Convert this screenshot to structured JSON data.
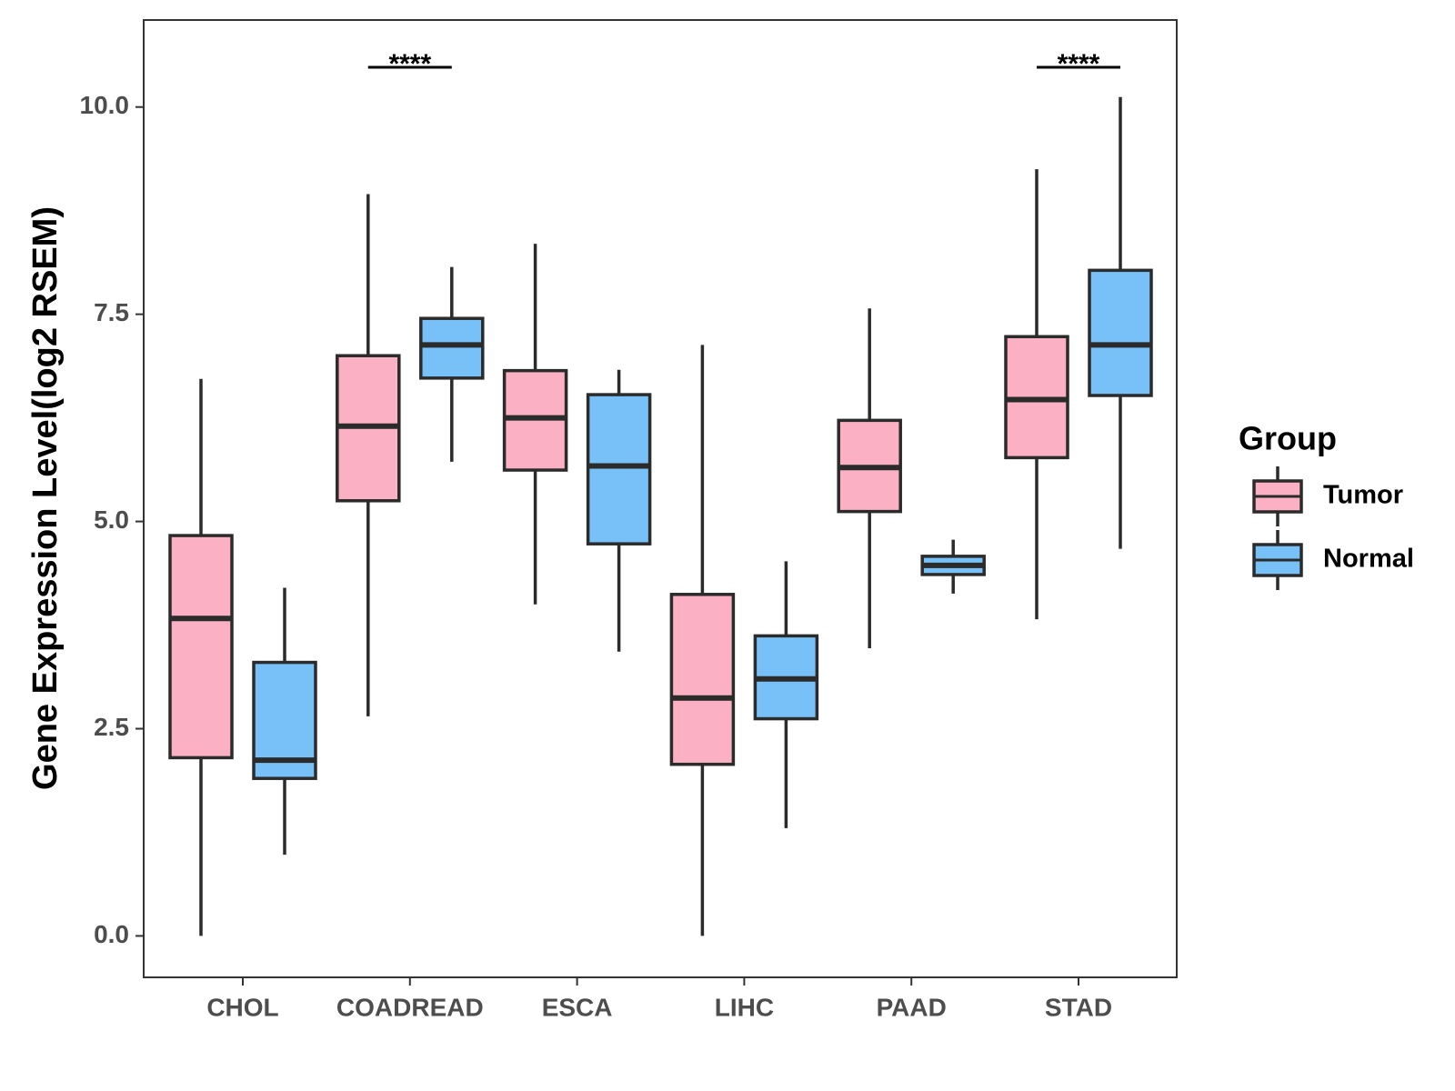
{
  "chart_data": {
    "type": "boxplot",
    "title": "",
    "xlabel": "",
    "ylabel": "Gene Expression Level(log2 RSEM)",
    "ylim": [
      -0.5,
      11.05
    ],
    "yticks": [
      0.0,
      2.5,
      5.0,
      7.5,
      10.0
    ],
    "ytick_labels": [
      "0.0",
      "2.5",
      "5.0",
      "7.5",
      "10.0"
    ],
    "grid": false,
    "categories": [
      "CHOL",
      "COADREAD",
      "ESCA",
      "LIHC",
      "PAAD",
      "STAD"
    ],
    "legend": {
      "title": "Group",
      "position": "right",
      "entries": [
        {
          "name": "Tumor",
          "color": "#fbb1c3"
        },
        {
          "name": "Normal",
          "color": "#77c1f8"
        }
      ]
    },
    "series": [
      {
        "name": "Tumor",
        "color": "#fbb1c3",
        "boxes": [
          {
            "min": 0.0,
            "q1": 2.15,
            "median": 3.83,
            "q3": 4.83,
            "max": 6.72
          },
          {
            "min": 2.65,
            "q1": 5.25,
            "median": 6.15,
            "q3": 7.0,
            "max": 8.95
          },
          {
            "min": 4.0,
            "q1": 5.62,
            "median": 6.25,
            "q3": 6.82,
            "max": 8.35
          },
          {
            "min": 0.0,
            "q1": 2.07,
            "median": 2.87,
            "q3": 4.12,
            "max": 7.13
          },
          {
            "min": 3.47,
            "q1": 5.12,
            "median": 5.65,
            "q3": 6.22,
            "max": 7.57
          },
          {
            "min": 3.82,
            "q1": 5.77,
            "median": 6.47,
            "q3": 7.23,
            "max": 9.25
          }
        ]
      },
      {
        "name": "Normal",
        "color": "#77c1f8",
        "boxes": [
          {
            "min": 0.98,
            "q1": 1.9,
            "median": 2.12,
            "q3": 3.3,
            "max": 4.2
          },
          {
            "min": 5.72,
            "q1": 6.73,
            "median": 7.13,
            "q3": 7.45,
            "max": 8.07
          },
          {
            "min": 3.43,
            "q1": 4.73,
            "median": 5.67,
            "q3": 6.53,
            "max": 6.83
          },
          {
            "min": 1.3,
            "q1": 2.62,
            "median": 3.1,
            "q3": 3.62,
            "max": 4.52
          },
          {
            "min": 4.13,
            "q1": 4.36,
            "median": 4.47,
            "q3": 4.58,
            "max": 4.78
          },
          {
            "min": 4.67,
            "q1": 6.52,
            "median": 7.13,
            "q3": 8.03,
            "max": 10.12
          }
        ]
      }
    ],
    "annotations": [
      {
        "category": "COADREAD",
        "label": "****",
        "y": 10.48
      },
      {
        "category": "STAD",
        "label": "****",
        "y": 10.48
      }
    ]
  }
}
